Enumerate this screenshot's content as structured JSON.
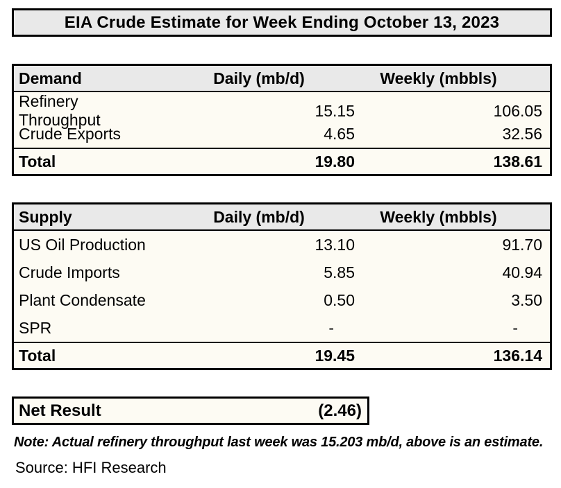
{
  "title": "EIA Crude Estimate for Week Ending October 13, 2023",
  "tables": [
    {
      "headers": [
        "Demand",
        "Daily (mb/d)",
        "Weekly (mbbls)"
      ],
      "rows": [
        {
          "label": "Refinery Throughput",
          "daily": "15.15",
          "weekly": "106.05"
        },
        {
          "label": "Crude Exports",
          "daily": "4.65",
          "weekly": "32.56"
        }
      ],
      "total": {
        "label": "Total",
        "daily": "19.80",
        "weekly": "138.61"
      }
    },
    {
      "headers": [
        "Supply",
        "Daily (mb/d)",
        "Weekly (mbbls)"
      ],
      "rows": [
        {
          "label": "US Oil Production",
          "daily": "13.10",
          "weekly": "91.70"
        },
        {
          "label": "Crude Imports",
          "daily": "5.85",
          "weekly": "40.94"
        },
        {
          "label": "Plant Condensate",
          "daily": "0.50",
          "weekly": "3.50"
        },
        {
          "label": "SPR",
          "daily": "-",
          "weekly": "-"
        }
      ],
      "total": {
        "label": "Total",
        "daily": "19.45",
        "weekly": "136.14"
      }
    }
  ],
  "net_result": {
    "label": "Net Result",
    "value": "(2.46)"
  },
  "note": "Note: Actual refinery throughput last week was 15.203 mb/d, above is an estimate.",
  "source": "Source: HFI Research",
  "colors": {
    "header_bg": "#e9e9e9",
    "row_bg": "#fdfbf3",
    "border": "#000000",
    "page_bg": "#ffffff"
  },
  "chart_data": [
    {
      "type": "table",
      "title": "Demand",
      "columns": [
        "Demand",
        "Daily (mb/d)",
        "Weekly (mbbls)"
      ],
      "rows": [
        [
          "Refinery Throughput",
          15.15,
          106.05
        ],
        [
          "Crude Exports",
          4.65,
          32.56
        ],
        [
          "Total",
          19.8,
          138.61
        ]
      ]
    },
    {
      "type": "table",
      "title": "Supply",
      "columns": [
        "Supply",
        "Daily (mb/d)",
        "Weekly (mbbls)"
      ],
      "rows": [
        [
          "US Oil Production",
          13.1,
          91.7
        ],
        [
          "Crude Imports",
          5.85,
          40.94
        ],
        [
          "Plant Condensate",
          0.5,
          3.5
        ],
        [
          "SPR",
          null,
          null
        ],
        [
          "Total",
          19.45,
          136.14
        ]
      ]
    },
    {
      "type": "table",
      "title": "Net Result",
      "columns": [
        "Net Result"
      ],
      "rows": [
        [
          "Net Result",
          -2.46
        ]
      ]
    }
  ]
}
